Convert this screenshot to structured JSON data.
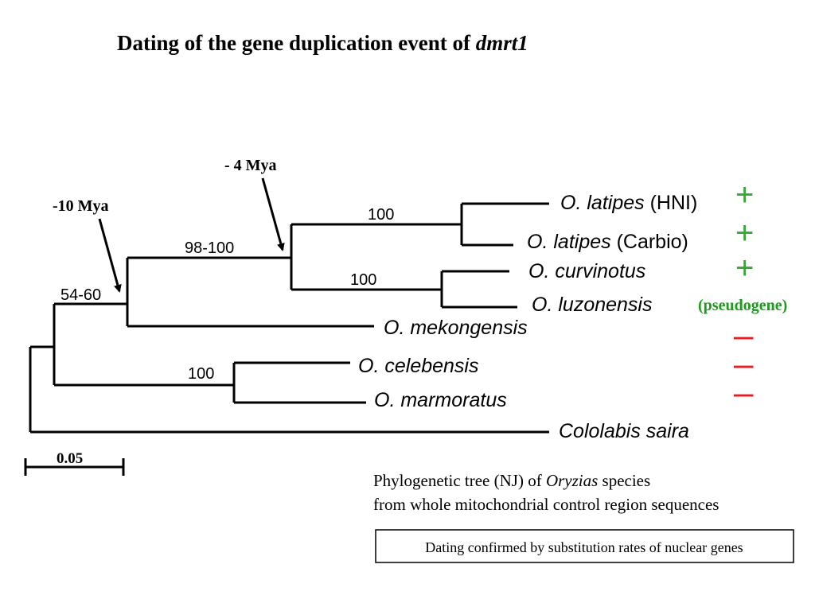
{
  "title": {
    "prefix": "Dating of the gene duplication event of ",
    "gene": "dmrt1"
  },
  "annotations": {
    "mya_4": "- 4 Mya",
    "mya_10": "-10 Mya"
  },
  "bootstrap": {
    "latipes_pair": "100",
    "upper_clade": "98-100",
    "curv_luz_pair": "100",
    "root_clade": "54-60",
    "cel_mar_pair": "100"
  },
  "taxa": [
    {
      "genus": "O.",
      "species": "latipes",
      "extra": " (HNI)",
      "status": "+"
    },
    {
      "genus": "O.",
      "species": "latipes",
      "extra": " (Carbio)",
      "status": "+"
    },
    {
      "genus": "O.",
      "species": "curvinotus",
      "extra": "",
      "status": "+"
    },
    {
      "genus": "O.",
      "species": "luzonensis",
      "extra": "",
      "status": "(pseudogene)"
    },
    {
      "genus": "O.",
      "species": "mekongensis",
      "extra": "",
      "status": "–"
    },
    {
      "genus": "O.",
      "species": "celebensis",
      "extra": "",
      "status": "–"
    },
    {
      "genus": "O.",
      "species": "marmoratus",
      "extra": "",
      "status": "–"
    },
    {
      "genus": "",
      "species": "Cololabis saira",
      "extra": "",
      "status": ""
    }
  ],
  "scale_bar": "0.05",
  "caption": {
    "line1_prefix": "Phylogenetic tree (NJ) of ",
    "line1_genus": "Oryzias",
    "line1_suffix": " species",
    "line2": "from whole mitochondrial control region sequences"
  },
  "note_box": "Dating confirmed by substitution rates of nuclear genes",
  "colors": {
    "present": "#3aa63a",
    "absent": "#e02020",
    "pseudogene": "#1e9a1e",
    "line": "#000000"
  }
}
